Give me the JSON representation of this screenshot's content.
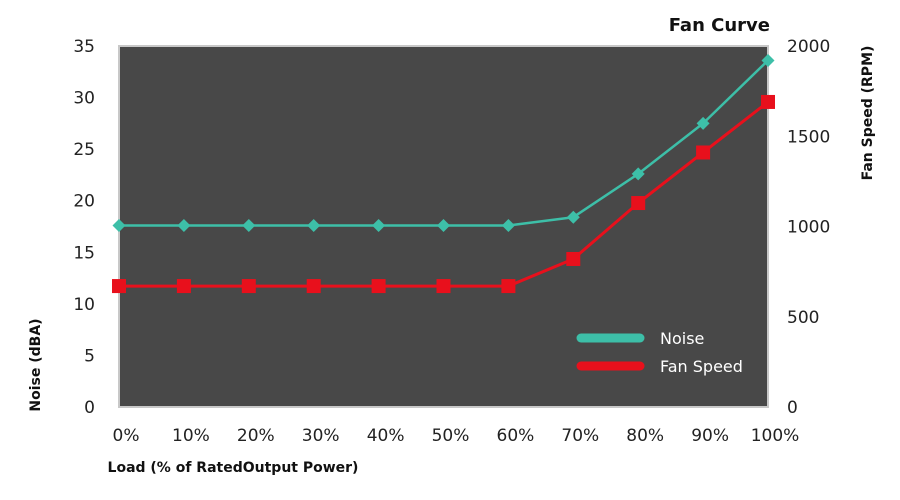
{
  "chart_data": {
    "type": "line",
    "title": "Fan Curve",
    "xlabel": "Load (% of RatedOutput Power)",
    "ylabel_left": "Noise (dBA)",
    "ylabel_right": "Fan Speed (RPM)",
    "categories": [
      "0%",
      "10%",
      "20%",
      "30%",
      "40%",
      "50%",
      "60%",
      "70%",
      "80%",
      "90%",
      "100%"
    ],
    "ylim_left": [
      0,
      35
    ],
    "ylim_right": [
      0,
      2000
    ],
    "yticks_left": [
      0,
      5,
      10,
      15,
      20,
      25,
      30,
      35
    ],
    "yticks_right": [
      0,
      500,
      1000,
      1500,
      2000
    ],
    "plot_background": "#484848",
    "legend_position": "bottom-right",
    "series": [
      {
        "name": "Noise",
        "axis": "left",
        "marker": "diamond",
        "color": "#3dbfa8",
        "values": [
          17.6,
          17.6,
          17.6,
          17.6,
          17.6,
          17.6,
          17.6,
          18.4,
          22.6,
          27.5,
          33.6
        ]
      },
      {
        "name": "Fan Speed",
        "axis": "right",
        "marker": "square",
        "color": "#e8101c",
        "values": [
          670,
          670,
          670,
          670,
          670,
          670,
          670,
          820,
          1130,
          1410,
          1690
        ]
      }
    ]
  }
}
